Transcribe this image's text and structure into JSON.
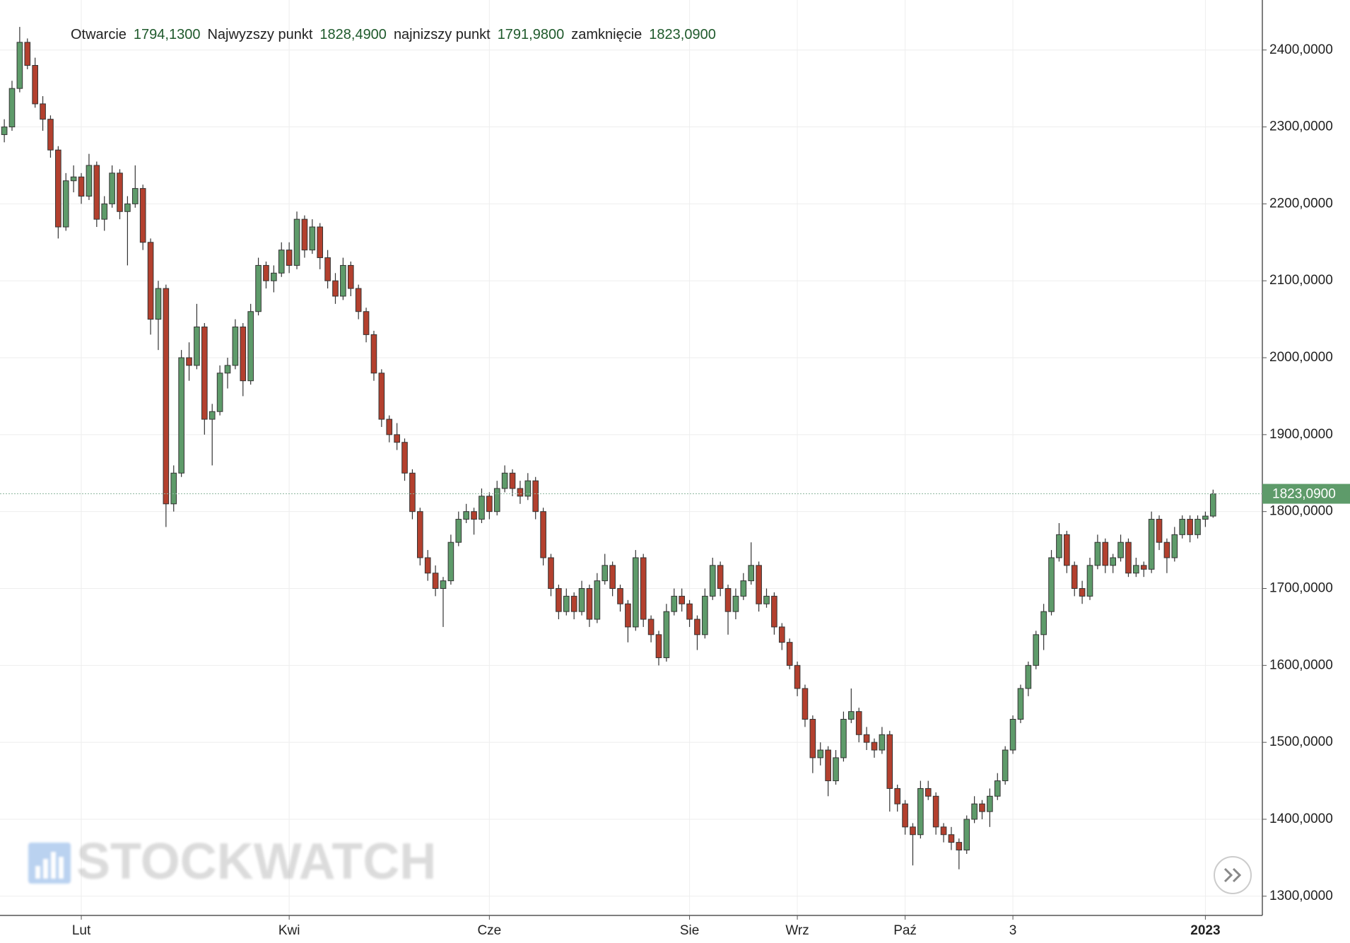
{
  "chart_data": {
    "type": "candlestick",
    "legend": [
      {
        "label": "Otwarcie",
        "value": "1794,1300"
      },
      {
        "label": "Najwyzszy punkt",
        "value": "1828,4900"
      },
      {
        "label": "najnizszy punkt",
        "value": "1791,9800"
      },
      {
        "label": "zamknięcie",
        "value": "1823,0900"
      }
    ],
    "watermark": "STOCKWATCH",
    "last_price": {
      "value": 1823.09,
      "label": "1823,0900"
    },
    "up_color": "#5e9b6a",
    "down_color": "#b3402e",
    "grid": true,
    "ylim": [
      1275,
      2465
    ],
    "yticks": [
      {
        "value": 1300,
        "label": "1300,0000"
      },
      {
        "value": 1400,
        "label": "1400,0000"
      },
      {
        "value": 1500,
        "label": "1500,0000"
      },
      {
        "value": 1600,
        "label": "1600,0000"
      },
      {
        "value": 1700,
        "label": "1700,0000"
      },
      {
        "value": 1800,
        "label": "1800,0000"
      },
      {
        "value": 1900,
        "label": "1900,0000"
      },
      {
        "value": 2000,
        "label": "2000,0000"
      },
      {
        "value": 2100,
        "label": "2100,0000"
      },
      {
        "value": 2200,
        "label": "2200,0000"
      },
      {
        "value": 2300,
        "label": "2300,0000"
      },
      {
        "value": 2400,
        "label": "2400,0000"
      }
    ],
    "xlim": [
      -0.56,
      163.4
    ],
    "xticks": [
      {
        "value": 10,
        "label": "Lut"
      },
      {
        "value": 37,
        "label": "Kwi"
      },
      {
        "value": 63,
        "label": "Cze"
      },
      {
        "value": 89,
        "label": "Sie"
      },
      {
        "value": 103,
        "label": "Wrz"
      },
      {
        "value": 117,
        "label": "Paź"
      },
      {
        "value": 131,
        "label": "3"
      },
      {
        "value": 156,
        "label": "2023"
      }
    ],
    "ohlc": [
      [
        2290,
        2310,
        2280,
        2300
      ],
      [
        2300,
        2360,
        2295,
        2350
      ],
      [
        2350,
        2430,
        2345,
        2410
      ],
      [
        2410,
        2415,
        2375,
        2380
      ],
      [
        2380,
        2390,
        2325,
        2330
      ],
      [
        2330,
        2340,
        2295,
        2310
      ],
      [
        2310,
        2315,
        2260,
        2270
      ],
      [
        2270,
        2275,
        2155,
        2170
      ],
      [
        2170,
        2240,
        2165,
        2230
      ],
      [
        2230,
        2250,
        2215,
        2235
      ],
      [
        2235,
        2240,
        2200,
        2210
      ],
      [
        2210,
        2265,
        2205,
        2250
      ],
      [
        2250,
        2255,
        2170,
        2180
      ],
      [
        2180,
        2210,
        2165,
        2200
      ],
      [
        2200,
        2250,
        2195,
        2240
      ],
      [
        2240,
        2245,
        2180,
        2190
      ],
      [
        2190,
        2210,
        2120,
        2200
      ],
      [
        2200,
        2250,
        2195,
        2220
      ],
      [
        2220,
        2225,
        2140,
        2150
      ],
      [
        2150,
        2155,
        2030,
        2050
      ],
      [
        2050,
        2100,
        2010,
        2090
      ],
      [
        2090,
        2095,
        1780,
        1810
      ],
      [
        1810,
        1860,
        1800,
        1850
      ],
      [
        1850,
        2010,
        1845,
        2000
      ],
      [
        2000,
        2020,
        1970,
        1990
      ],
      [
        1990,
        2070,
        1985,
        2040
      ],
      [
        2040,
        2045,
        1900,
        1920
      ],
      [
        1920,
        1940,
        1860,
        1930
      ],
      [
        1930,
        1990,
        1925,
        1980
      ],
      [
        1980,
        2000,
        1960,
        1990
      ],
      [
        1990,
        2050,
        1985,
        2040
      ],
      [
        2040,
        2045,
        1950,
        1970
      ],
      [
        1970,
        2070,
        1965,
        2060
      ],
      [
        2060,
        2130,
        2055,
        2120
      ],
      [
        2120,
        2125,
        2090,
        2100
      ],
      [
        2100,
        2120,
        2085,
        2110
      ],
      [
        2110,
        2150,
        2105,
        2140
      ],
      [
        2140,
        2150,
        2110,
        2120
      ],
      [
        2120,
        2190,
        2115,
        2180
      ],
      [
        2180,
        2185,
        2130,
        2140
      ],
      [
        2140,
        2180,
        2135,
        2170
      ],
      [
        2170,
        2175,
        2115,
        2130
      ],
      [
        2130,
        2140,
        2090,
        2100
      ],
      [
        2100,
        2110,
        2070,
        2080
      ],
      [
        2080,
        2130,
        2075,
        2120
      ],
      [
        2120,
        2125,
        2080,
        2090
      ],
      [
        2090,
        2095,
        2050,
        2060
      ],
      [
        2060,
        2065,
        2020,
        2030
      ],
      [
        2030,
        2035,
        1970,
        1980
      ],
      [
        1980,
        1985,
        1910,
        1920
      ],
      [
        1920,
        1925,
        1890,
        1900
      ],
      [
        1900,
        1915,
        1880,
        1890
      ],
      [
        1890,
        1895,
        1840,
        1850
      ],
      [
        1850,
        1855,
        1790,
        1800
      ],
      [
        1800,
        1805,
        1730,
        1740
      ],
      [
        1740,
        1750,
        1710,
        1720
      ],
      [
        1720,
        1730,
        1690,
        1700
      ],
      [
        1700,
        1715,
        1650,
        1710
      ],
      [
        1710,
        1770,
        1705,
        1760
      ],
      [
        1760,
        1800,
        1755,
        1790
      ],
      [
        1790,
        1810,
        1785,
        1800
      ],
      [
        1800,
        1805,
        1770,
        1790
      ],
      [
        1790,
        1830,
        1785,
        1820
      ],
      [
        1820,
        1825,
        1790,
        1800
      ],
      [
        1800,
        1840,
        1795,
        1830
      ],
      [
        1830,
        1860,
        1825,
        1850
      ],
      [
        1850,
        1855,
        1820,
        1830
      ],
      [
        1830,
        1840,
        1810,
        1820
      ],
      [
        1820,
        1850,
        1815,
        1840
      ],
      [
        1840,
        1845,
        1790,
        1800
      ],
      [
        1800,
        1805,
        1730,
        1740
      ],
      [
        1740,
        1745,
        1690,
        1700
      ],
      [
        1700,
        1705,
        1660,
        1670
      ],
      [
        1670,
        1700,
        1665,
        1690
      ],
      [
        1690,
        1695,
        1660,
        1670
      ],
      [
        1670,
        1710,
        1665,
        1700
      ],
      [
        1700,
        1705,
        1650,
        1660
      ],
      [
        1660,
        1720,
        1655,
        1710
      ],
      [
        1710,
        1745,
        1705,
        1730
      ],
      [
        1730,
        1735,
        1690,
        1700
      ],
      [
        1700,
        1705,
        1670,
        1680
      ],
      [
        1680,
        1685,
        1630,
        1650
      ],
      [
        1650,
        1750,
        1645,
        1740
      ],
      [
        1740,
        1745,
        1650,
        1660
      ],
      [
        1660,
        1665,
        1630,
        1640
      ],
      [
        1640,
        1645,
        1600,
        1610
      ],
      [
        1610,
        1680,
        1605,
        1670
      ],
      [
        1670,
        1700,
        1665,
        1690
      ],
      [
        1690,
        1700,
        1670,
        1680
      ],
      [
        1680,
        1685,
        1650,
        1660
      ],
      [
        1660,
        1665,
        1620,
        1640
      ],
      [
        1640,
        1700,
        1635,
        1690
      ],
      [
        1690,
        1740,
        1685,
        1730
      ],
      [
        1730,
        1735,
        1690,
        1700
      ],
      [
        1700,
        1705,
        1640,
        1670
      ],
      [
        1670,
        1700,
        1660,
        1690
      ],
      [
        1690,
        1720,
        1685,
        1710
      ],
      [
        1710,
        1760,
        1705,
        1730
      ],
      [
        1730,
        1735,
        1670,
        1680
      ],
      [
        1680,
        1700,
        1675,
        1690
      ],
      [
        1690,
        1695,
        1640,
        1650
      ],
      [
        1650,
        1655,
        1620,
        1630
      ],
      [
        1630,
        1635,
        1595,
        1600
      ],
      [
        1600,
        1605,
        1560,
        1570
      ],
      [
        1570,
        1575,
        1520,
        1530
      ],
      [
        1530,
        1535,
        1460,
        1480
      ],
      [
        1480,
        1500,
        1470,
        1490
      ],
      [
        1490,
        1495,
        1430,
        1450
      ],
      [
        1450,
        1490,
        1445,
        1480
      ],
      [
        1480,
        1540,
        1475,
        1530
      ],
      [
        1530,
        1570,
        1525,
        1540
      ],
      [
        1540,
        1545,
        1500,
        1510
      ],
      [
        1510,
        1520,
        1490,
        1500
      ],
      [
        1500,
        1505,
        1480,
        1490
      ],
      [
        1490,
        1520,
        1485,
        1510
      ],
      [
        1510,
        1515,
        1410,
        1440
      ],
      [
        1440,
        1445,
        1410,
        1420
      ],
      [
        1420,
        1425,
        1380,
        1390
      ],
      [
        1390,
        1395,
        1340,
        1380
      ],
      [
        1380,
        1450,
        1375,
        1440
      ],
      [
        1440,
        1450,
        1425,
        1430
      ],
      [
        1430,
        1435,
        1380,
        1390
      ],
      [
        1390,
        1395,
        1370,
        1380
      ],
      [
        1380,
        1390,
        1360,
        1370
      ],
      [
        1370,
        1375,
        1335,
        1360
      ],
      [
        1360,
        1405,
        1355,
        1400
      ],
      [
        1400,
        1430,
        1395,
        1420
      ],
      [
        1420,
        1425,
        1400,
        1410
      ],
      [
        1410,
        1440,
        1390,
        1430
      ],
      [
        1430,
        1460,
        1425,
        1450
      ],
      [
        1450,
        1495,
        1445,
        1490
      ],
      [
        1490,
        1535,
        1485,
        1530
      ],
      [
        1530,
        1575,
        1525,
        1570
      ],
      [
        1570,
        1605,
        1560,
        1600
      ],
      [
        1600,
        1645,
        1595,
        1640
      ],
      [
        1640,
        1680,
        1620,
        1670
      ],
      [
        1670,
        1750,
        1665,
        1740
      ],
      [
        1740,
        1785,
        1735,
        1770
      ],
      [
        1770,
        1775,
        1720,
        1730
      ],
      [
        1730,
        1735,
        1690,
        1700
      ],
      [
        1700,
        1710,
        1680,
        1690
      ],
      [
        1690,
        1740,
        1685,
        1730
      ],
      [
        1730,
        1770,
        1725,
        1760
      ],
      [
        1760,
        1765,
        1720,
        1730
      ],
      [
        1730,
        1745,
        1720,
        1740
      ],
      [
        1740,
        1770,
        1735,
        1760
      ],
      [
        1760,
        1765,
        1715,
        1720
      ],
      [
        1720,
        1740,
        1715,
        1730
      ],
      [
        1730,
        1735,
        1715,
        1725
      ],
      [
        1725,
        1800,
        1720,
        1790
      ],
      [
        1790,
        1795,
        1750,
        1760
      ],
      [
        1760,
        1765,
        1720,
        1740
      ],
      [
        1740,
        1780,
        1735,
        1770
      ],
      [
        1770,
        1795,
        1765,
        1790
      ],
      [
        1790,
        1795,
        1760,
        1770
      ],
      [
        1770,
        1795,
        1765,
        1790
      ],
      [
        1790,
        1800,
        1780,
        1794.13
      ],
      [
        1794.13,
        1828.49,
        1791.98,
        1823.09
      ]
    ]
  }
}
